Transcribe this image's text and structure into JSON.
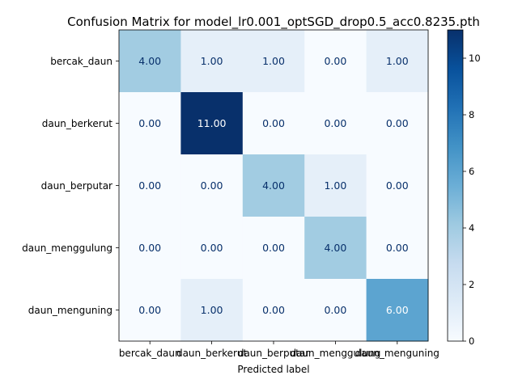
{
  "chart_data": {
    "type": "heatmap",
    "title": "Confusion Matrix for model_lr0.001_optSGD_drop0.5_acc0.8235.pth",
    "xlabel": "Predicted label",
    "ylabel": "",
    "x_categories": [
      "bercak_daun",
      "daun_berkerut",
      "daun_berputar",
      "daun_menggulung",
      "daun_menguning"
    ],
    "y_categories": [
      "bercak_daun",
      "daun_berkerut",
      "daun_berputar",
      "daun_menggulung",
      "daun_menguning"
    ],
    "values": [
      [
        4,
        1,
        1,
        0,
        1
      ],
      [
        0,
        11,
        0,
        0,
        0
      ],
      [
        0,
        0,
        4,
        1,
        0
      ],
      [
        0,
        0,
        0,
        4,
        0
      ],
      [
        0,
        1,
        0,
        0,
        6
      ]
    ],
    "value_labels": [
      [
        "4.00",
        "1.00",
        "1.00",
        "0.00",
        "1.00"
      ],
      [
        "0.00",
        "11.00",
        "0.00",
        "0.00",
        "0.00"
      ],
      [
        "0.00",
        "0.00",
        "4.00",
        "1.00",
        "0.00"
      ],
      [
        "0.00",
        "0.00",
        "0.00",
        "4.00",
        "0.00"
      ],
      [
        "0.00",
        "1.00",
        "0.00",
        "0.00",
        "6.00"
      ]
    ],
    "colormap": "Blues",
    "colorbar": {
      "range": [
        0,
        11
      ],
      "ticks": [
        0,
        2,
        4,
        6,
        8,
        10
      ],
      "tick_labels": [
        "0",
        "2",
        "4",
        "6",
        "8",
        "10"
      ]
    },
    "grid": false
  }
}
